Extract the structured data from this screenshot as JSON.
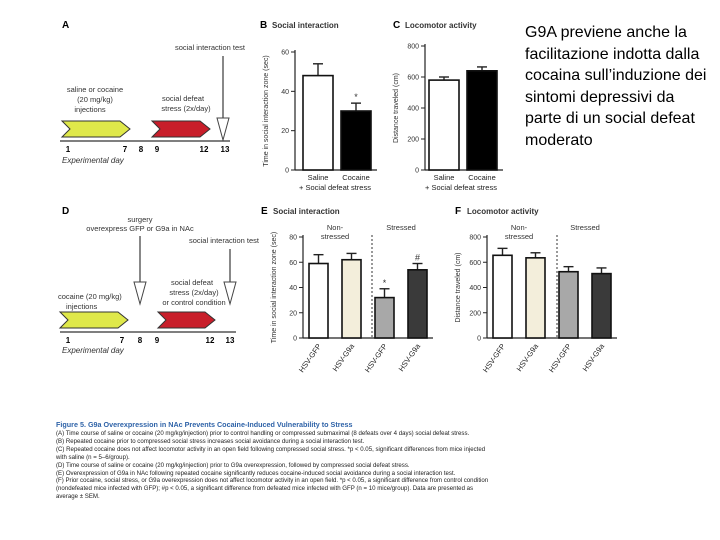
{
  "side_text": "G9A previene anche la facilitazione indotta dalla cocaina sull’induzione dei sintomi depressivi da parte di un social defeat moderato",
  "timeline_a": {
    "panel_label": "A",
    "top_label": "social interaction test",
    "inj_label_1": "saline or cocaine",
    "inj_label_2": "(20 mg/kg)",
    "inj_label_3": "injections",
    "defeat_label_1": "social defeat",
    "defeat_label_2": "stress (2x/day)",
    "ticks": [
      "1",
      "7",
      "8",
      "9",
      "12",
      "13"
    ],
    "axis_label": "Experimental day"
  },
  "timeline_d": {
    "panel_label": "D",
    "surgery_1": "surgery",
    "surgery_2": "overexpress GFP or G9a in NAc",
    "top_label": "social interaction test",
    "inj_label_1": "cocaine (20 mg/kg)",
    "inj_label_2": "injections",
    "defeat_label_1": "social defeat",
    "defeat_label_2": "stress (2x/day)",
    "defeat_label_3": "or control condition",
    "ticks": [
      "1",
      "7",
      "8",
      "9",
      "12",
      "13"
    ],
    "axis_label": "Experimental day"
  },
  "chart_data": [
    {
      "panel": "B",
      "type": "bar",
      "title": "Social interaction",
      "ylabel": "Time in social interaction zone (sec)",
      "ylim": [
        0,
        60
      ],
      "yticks": [
        "0",
        "20",
        "40",
        "60"
      ],
      "categories": [
        "Saline",
        "Cocaine"
      ],
      "values": [
        48,
        30
      ],
      "errors": [
        6,
        4
      ],
      "fill": [
        "#ffffff",
        "#000000"
      ],
      "annotations": [
        "",
        "*"
      ],
      "xnote": "+ Social defeat stress"
    },
    {
      "panel": "C",
      "type": "bar",
      "title": "Locomotor activity",
      "ylabel": "Distance traveled (cm)",
      "ylim": [
        0,
        800
      ],
      "yticks": [
        "0",
        "200",
        "400",
        "600",
        "800"
      ],
      "categories": [
        "Saline",
        "Cocaine"
      ],
      "values": [
        580,
        640
      ],
      "errors": [
        20,
        25
      ],
      "fill": [
        "#ffffff",
        "#000000"
      ],
      "annotations": [
        "",
        ""
      ],
      "xnote": "+ Social defeat stress"
    },
    {
      "panel": "E",
      "type": "bar",
      "title": "Social interaction",
      "ylabel": "Time in social interaction zone (sec)",
      "ylim": [
        0,
        80
      ],
      "yticks": [
        "0",
        "20",
        "40",
        "60",
        "80"
      ],
      "categories": [
        "HSV-GFP",
        "HSV-G9a",
        "HSV-GFP",
        "HSV-G9a"
      ],
      "values": [
        59,
        62,
        32,
        54
      ],
      "errors": [
        7,
        5,
        7,
        5
      ],
      "fill": [
        "#ffffff",
        "#f3eedb",
        "#a8a8a8",
        "#3a3a3a"
      ],
      "annotations": [
        "",
        "",
        "*",
        "#"
      ],
      "groups": [
        "Non-stressed",
        "Stressed"
      ]
    },
    {
      "panel": "F",
      "type": "bar",
      "title": "Locomotor activity",
      "ylabel": "Distance traveled (cm)",
      "ylim": [
        0,
        800
      ],
      "yticks": [
        "0",
        "200",
        "400",
        "600",
        "800"
      ],
      "categories": [
        "HSV-GFP",
        "HSV-G9a",
        "HSV-GFP",
        "HSV-G9a"
      ],
      "values": [
        655,
        635,
        525,
        510
      ],
      "errors": [
        55,
        40,
        40,
        45
      ],
      "fill": [
        "#ffffff",
        "#f3eedb",
        "#a8a8a8",
        "#3a3a3a"
      ],
      "annotations": [
        "",
        "",
        "",
        ""
      ],
      "groups": [
        "Non-stressed",
        "Stressed"
      ]
    }
  ],
  "caption": {
    "title": "Figure 5.  G9a Overexpression in NAc Prevents Cocaine-Induced Vulnerability to Stress",
    "lines": [
      "(A) Time course of saline or cocaine (20 mg/kg/injection) prior to control handling or compressed submaximal (8 defeats over 4 days) social defeat stress.",
      "(B) Repeated cocaine prior to compressed social stress increases social avoidance during a social interaction test.",
      "(C) Repeated cocaine does not affect locomotor activity in an open field following compressed social stress. *p < 0.05, significant differences from mice injected",
      "with saline (n = 5–6/group).",
      "(D) Time course of saline or cocaine (20 mg/kg/injection) prior to G9a overexpression, followed by compressed social defeat stress.",
      "(E) Overexpression of G9a in NAc following repeated cocaine significantly reduces cocaine-induced social avoidance during a social interaction test.",
      "(F) Prior cocaine, social stress, or G9a overexpression does not affect locomotor activity in an open field. *p < 0.05, a significant difference from control condition",
      "(nondefeated mice infected with GFP); #p < 0.05, a significant difference from defeated mice infected with GFP (n = 10 mice/group). Data are presented as",
      "average ± SEM."
    ]
  }
}
